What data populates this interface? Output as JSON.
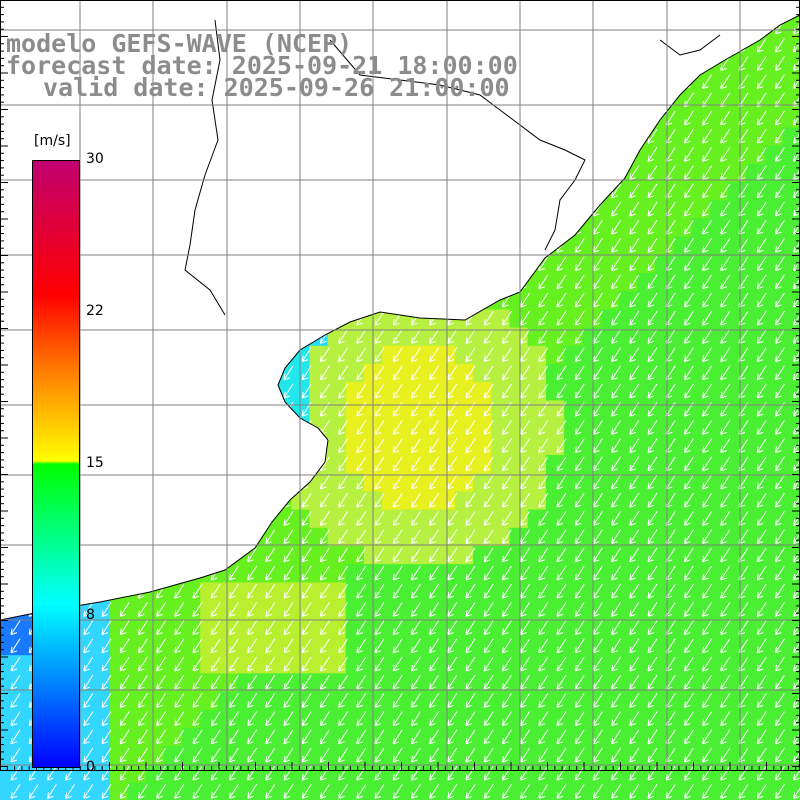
{
  "title": {
    "model": "modelo GEFS-WAVE (NCEP)",
    "forecast": "forecast date: 2025-09-21 18:00:00",
    "valid": "valid date: 2025-09-26 21:00:00"
  },
  "colorbar": {
    "unit": "[m/s]",
    "ticks": [
      "30",
      "22",
      "15",
      "8",
      "0"
    ],
    "colors": [
      "#0000ff",
      "#00ffff",
      "#00ff00",
      "#ffff00",
      "#ff8000",
      "#ff0000",
      "#c00070"
    ]
  },
  "colors": {
    "land": "#ffffff",
    "grid": "#808080",
    "coast": "#000000",
    "arrows": "#ffffff"
  }
}
